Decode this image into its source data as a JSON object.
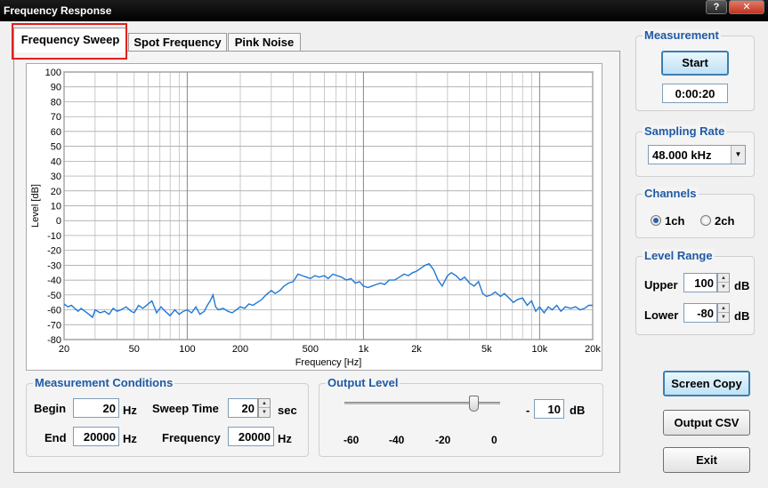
{
  "window": {
    "title": "Frequency Response",
    "help_label": "?",
    "close_label": "✕"
  },
  "tabs": [
    {
      "label": "Frequency Sweep",
      "active": true
    },
    {
      "label": "Spot Frequency",
      "active": false
    },
    {
      "label": "Pink Noise",
      "active": false
    }
  ],
  "chart_data": {
    "type": "line",
    "xlabel": "Frequency [Hz]",
    "ylabel": "Level [dB]",
    "xscale": "log",
    "xlim": [
      20,
      20000
    ],
    "ylim": [
      -80,
      100
    ],
    "xticks": [
      20,
      50,
      100,
      200,
      500,
      1000,
      2000,
      5000,
      10000,
      20000
    ],
    "xtick_labels": [
      "20",
      "50",
      "100",
      "200",
      "500",
      "1k",
      "2k",
      "5k",
      "10k",
      "20k"
    ],
    "yticks": [
      100,
      90,
      80,
      70,
      60,
      50,
      40,
      30,
      20,
      10,
      0,
      -10,
      -20,
      -30,
      -40,
      -50,
      -60,
      -70,
      -80
    ],
    "grid": true,
    "line_color": "#1f78d6",
    "series": [
      {
        "x": [
          20,
          21,
          22,
          24,
          25,
          27,
          29,
          30,
          32,
          34,
          36,
          38,
          40,
          42,
          45,
          48,
          50,
          53,
          56,
          60,
          63,
          67,
          71,
          75,
          80,
          85,
          90,
          95,
          100,
          106,
          112,
          118,
          125,
          130,
          135,
          140,
          145,
          150,
          160,
          170,
          180,
          190,
          200,
          212,
          224,
          236,
          250,
          265,
          280,
          300,
          315,
          335,
          355,
          375,
          400,
          425,
          450,
          475,
          500,
          530,
          560,
          600,
          630,
          670,
          710,
          750,
          800,
          850,
          900,
          950,
          1000,
          1060,
          1120,
          1180,
          1250,
          1320,
          1400,
          1500,
          1600,
          1700,
          1800,
          1900,
          2000,
          2120,
          2240,
          2360,
          2500,
          2650,
          2800,
          3000,
          3150,
          3350,
          3550,
          3750,
          4000,
          4250,
          4500,
          4750,
          5000,
          5300,
          5600,
          6000,
          6300,
          6700,
          7100,
          7500,
          8000,
          8500,
          9000,
          9500,
          10000,
          10600,
          11200,
          11800,
          12500,
          13200,
          14000,
          15000,
          16000,
          17000,
          18000,
          19000,
          20000
        ],
        "y": [
          -56,
          -58,
          -57,
          -61,
          -59,
          -62,
          -65,
          -60,
          -62,
          -61,
          -63,
          -59,
          -61,
          -60,
          -58,
          -61,
          -62,
          -57,
          -59,
          -56,
          -54,
          -62,
          -58,
          -61,
          -64,
          -60,
          -63,
          -61,
          -60,
          -62,
          -58,
          -63,
          -61,
          -57,
          -54,
          -50,
          -58,
          -60,
          -59,
          -61,
          -62,
          -60,
          -58,
          -59,
          -56,
          -57,
          -55,
          -53,
          -50,
          -47,
          -49,
          -47,
          -44,
          -42,
          -41,
          -36,
          -37,
          -38,
          -39,
          -37,
          -38,
          -37,
          -39,
          -36,
          -37,
          -38,
          -40,
          -39,
          -42,
          -41,
          -44,
          -45,
          -44,
          -43,
          -42,
          -43,
          -40,
          -40,
          -38,
          -36,
          -37,
          -35,
          -34,
          -32,
          -30,
          -29,
          -33,
          -40,
          -44,
          -37,
          -35,
          -37,
          -40,
          -38,
          -42,
          -44,
          -41,
          -49,
          -51,
          -50,
          -48,
          -51,
          -49,
          -52,
          -55,
          -53,
          -52,
          -57,
          -54,
          -61,
          -58,
          -62,
          -58,
          -60,
          -57,
          -61,
          -58,
          -59,
          -58,
          -60,
          -59,
          -57,
          -57
        ]
      }
    ]
  },
  "measurement_conditions": {
    "title": "Measurement Conditions",
    "begin_label": "Begin",
    "begin_value": "20",
    "begin_unit": "Hz",
    "end_label": "End",
    "end_value": "20000",
    "end_unit": "Hz",
    "sweep_time_label": "Sweep Time",
    "sweep_time_value": "20",
    "sweep_time_unit": "sec",
    "frequency_label": "Frequency",
    "frequency_value": "20000",
    "frequency_unit": "Hz"
  },
  "output_level": {
    "title": "Output Level",
    "value": "10",
    "unit": "dB",
    "prefix": "-",
    "scale_labels": [
      "-60",
      "-40",
      "-20",
      "0"
    ],
    "slider_fraction": 0.83
  },
  "measurement": {
    "title": "Measurement",
    "start_label": "Start",
    "elapsed": "0:00:20"
  },
  "sampling_rate": {
    "title": "Sampling Rate",
    "selected": "48.000 kHz"
  },
  "channels": {
    "title": "Channels",
    "opt1": "1ch",
    "opt2": "2ch",
    "selected": "1ch"
  },
  "level_range": {
    "title": "Level Range",
    "upper_label": "Upper",
    "upper_value": "100",
    "upper_unit": "dB",
    "lower_label": "Lower",
    "lower_value": "-80",
    "lower_unit": "dB"
  },
  "actions": {
    "screen_copy": "Screen Copy",
    "output_csv": "Output CSV",
    "exit": "Exit"
  }
}
